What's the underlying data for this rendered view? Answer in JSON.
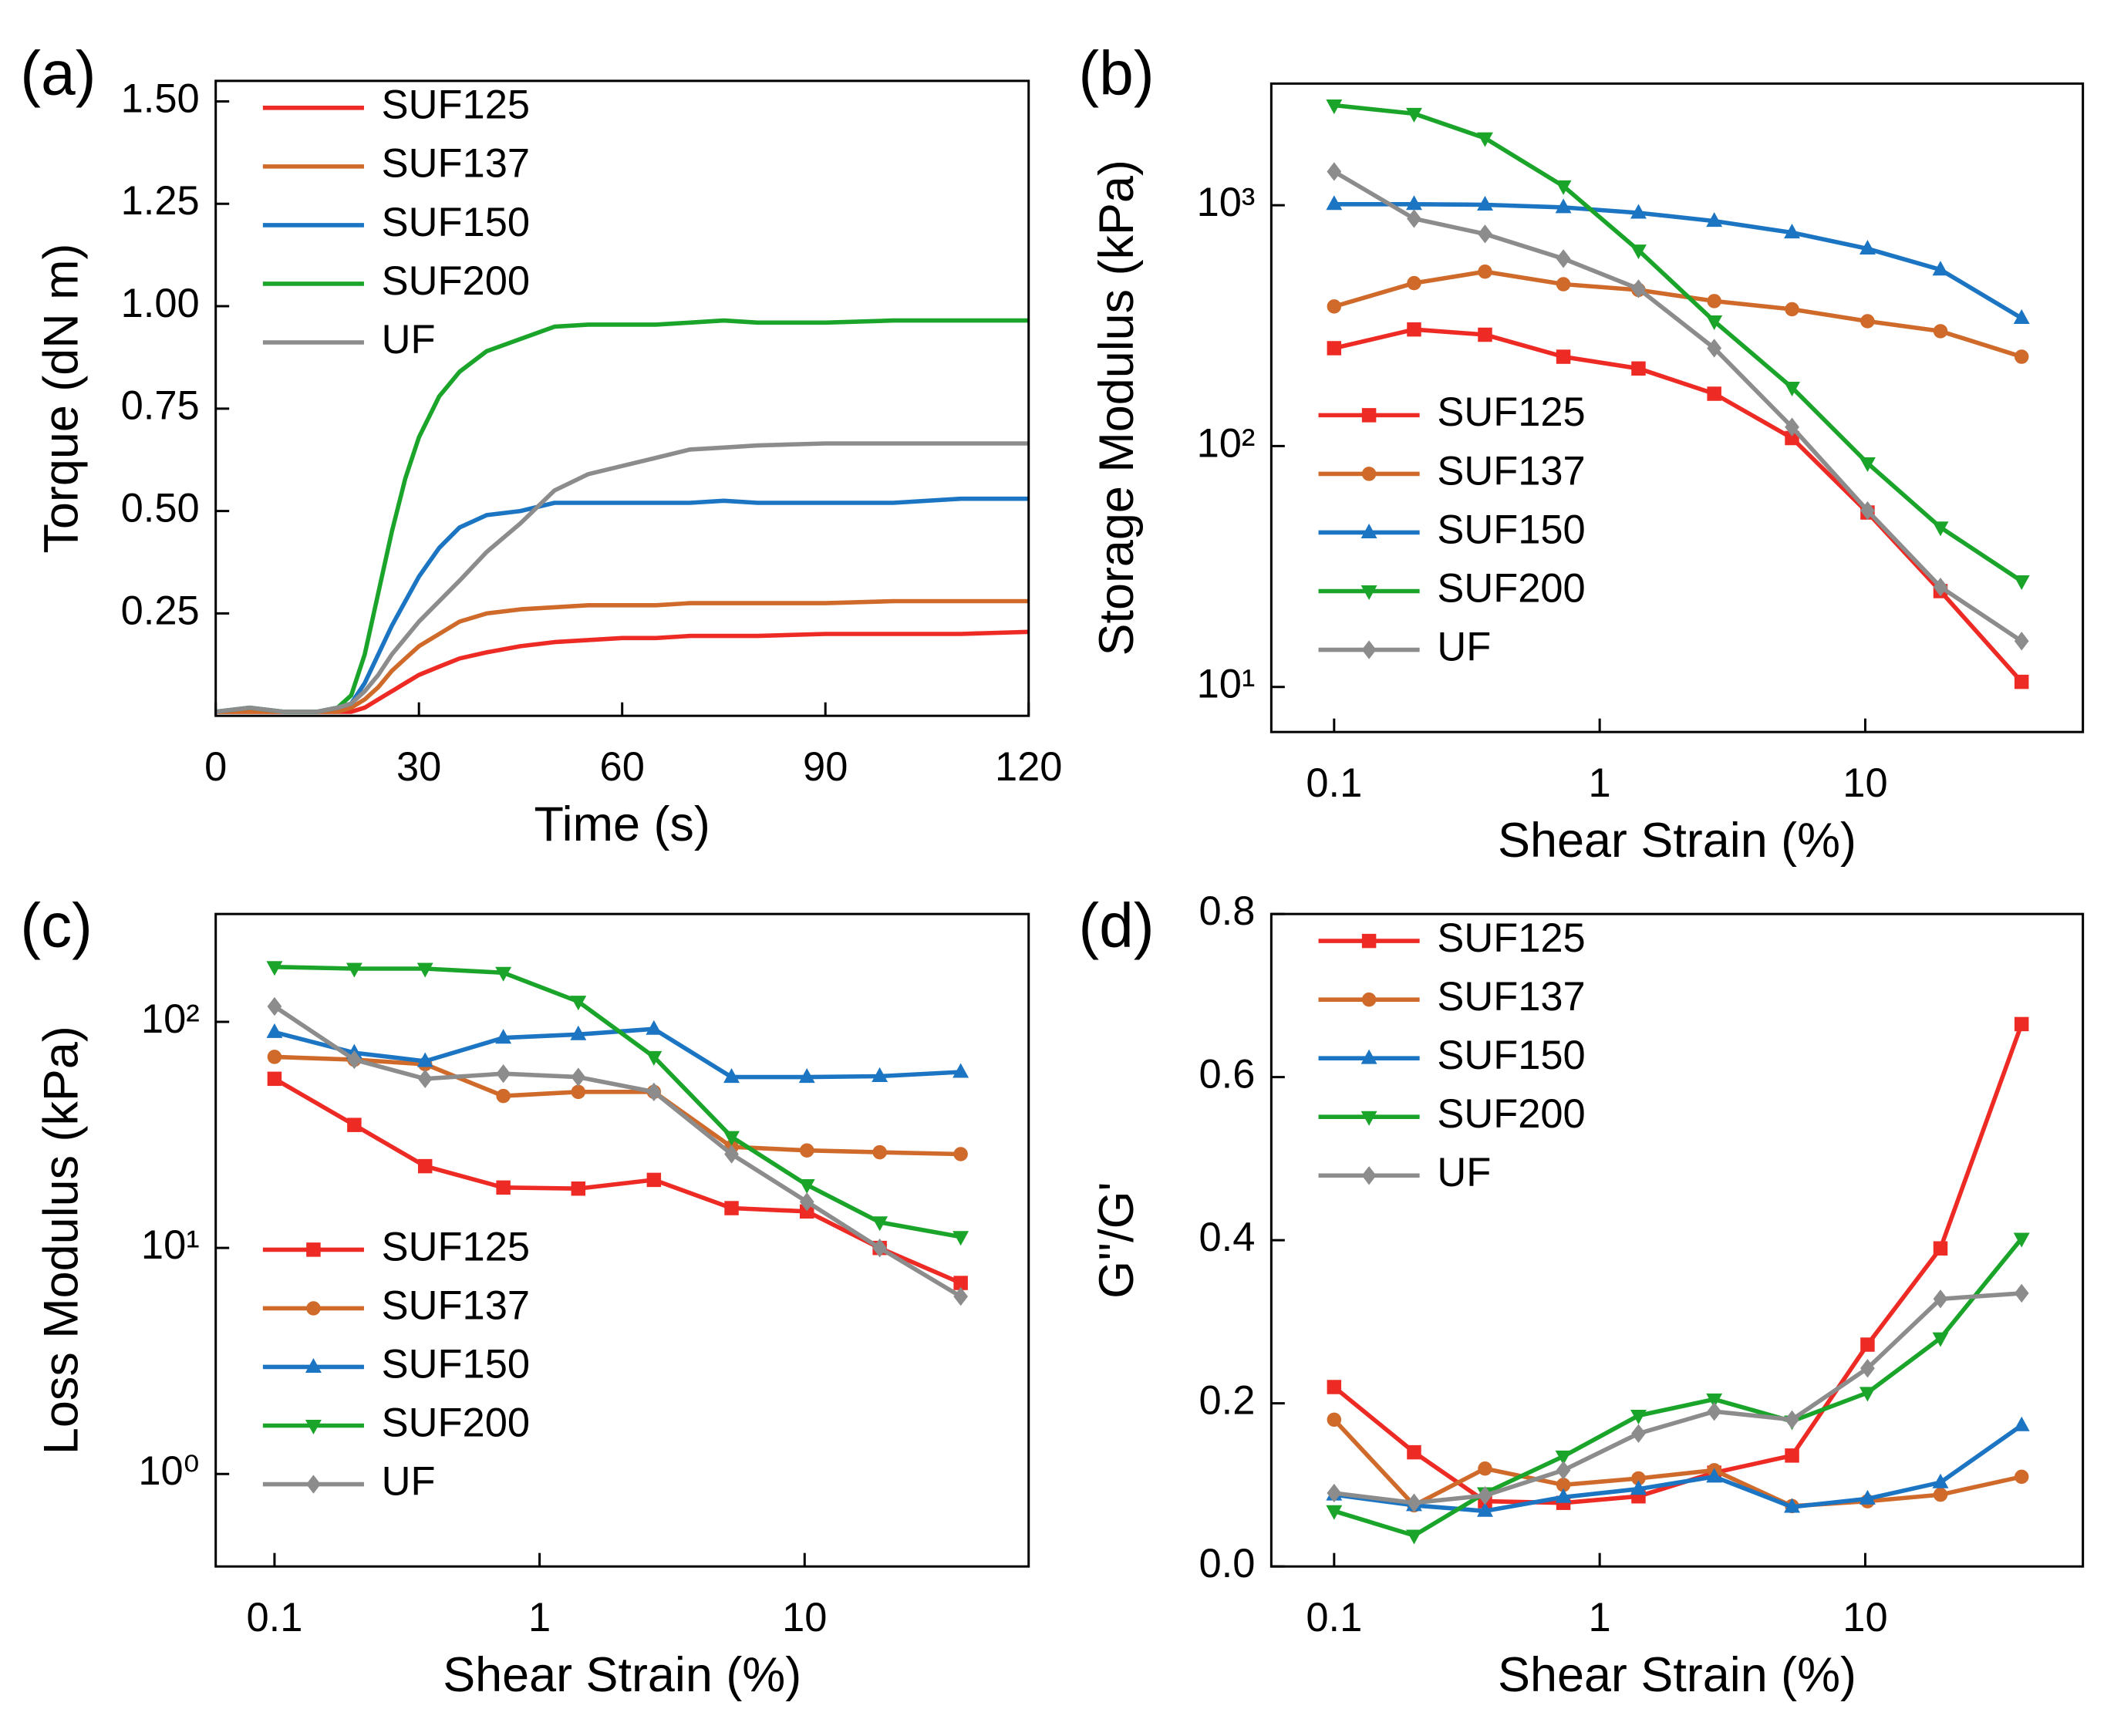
{
  "chart_data": [
    {
      "type": "line",
      "panel_label": "(a)",
      "x_label": "Time (s)",
      "y_label": "Torque (dN m)",
      "xlim": [
        0,
        120
      ],
      "xticks": [
        0,
        30,
        60,
        90,
        120
      ],
      "ylim": [
        0,
        1.55
      ],
      "yticks": [
        0.25,
        {
          "value": 0.5,
          "label": "0.50"
        },
        0.75,
        {
          "value": 1,
          "label": "1.00"
        },
        1.25,
        {
          "value": 1.5,
          "label": "1.50"
        }
      ],
      "legend": "upper left",
      "markers": false,
      "x": [
        0,
        5,
        10,
        15,
        18,
        20,
        22,
        24,
        26,
        28,
        30,
        33,
        36,
        40,
        45,
        50,
        55,
        60,
        65,
        70,
        75,
        80,
        90,
        100,
        110,
        120
      ],
      "series": [
        {
          "name": "SUF125",
          "color": "#ee2a24",
          "values": [
            0.01,
            0.01,
            0.01,
            0.01,
            0.01,
            0.01,
            0.02,
            0.04,
            0.06,
            0.08,
            0.1,
            0.12,
            0.14,
            0.155,
            0.17,
            0.18,
            0.185,
            0.19,
            0.19,
            0.195,
            0.195,
            0.195,
            0.2,
            0.2,
            0.2,
            0.205
          ]
        },
        {
          "name": "SUF137",
          "color": "#cf6a2b",
          "values": [
            0.01,
            0.01,
            0.01,
            0.01,
            0.01,
            0.02,
            0.04,
            0.07,
            0.11,
            0.14,
            0.17,
            0.2,
            0.23,
            0.25,
            0.26,
            0.265,
            0.27,
            0.27,
            0.27,
            0.275,
            0.275,
            0.275,
            0.275,
            0.28,
            0.28,
            0.28
          ]
        },
        {
          "name": "SUF150",
          "color": "#1b75c2",
          "values": [
            0.01,
            0.02,
            0.01,
            0.01,
            0.02,
            0.03,
            0.08,
            0.15,
            0.22,
            0.28,
            0.34,
            0.41,
            0.46,
            0.49,
            0.5,
            0.52,
            0.52,
            0.52,
            0.52,
            0.52,
            0.525,
            0.52,
            0.52,
            0.52,
            0.53,
            0.53
          ]
        },
        {
          "name": "SUF200",
          "color": "#1aa52a",
          "values": [
            0.01,
            0.02,
            0.01,
            0.01,
            0.02,
            0.05,
            0.15,
            0.3,
            0.45,
            0.58,
            0.68,
            0.78,
            0.84,
            0.89,
            0.92,
            0.95,
            0.955,
            0.955,
            0.955,
            0.96,
            0.965,
            0.96,
            0.96,
            0.965,
            0.965,
            0.965
          ]
        },
        {
          "name": "UF",
          "color": "#8c8c8c",
          "values": [
            0.01,
            0.02,
            0.01,
            0.01,
            0.02,
            0.03,
            0.06,
            0.1,
            0.15,
            0.19,
            0.23,
            0.28,
            0.33,
            0.4,
            0.47,
            0.55,
            0.59,
            0.61,
            0.63,
            0.65,
            0.655,
            0.66,
            0.665,
            0.665,
            0.665,
            0.665
          ]
        }
      ]
    },
    {
      "type": "line",
      "panel_label": "(b)",
      "x_label": "Shear Strain (%)",
      "y_label": "Storage Modulus (kPa)",
      "xscale": "log",
      "yscale": "log",
      "xlim": [
        0.058,
        66
      ],
      "xticks": [
        0.1,
        1,
        10
      ],
      "ylim": [
        6.5,
        3200
      ],
      "yticks": [
        {
          "value": 10,
          "label": "10¹"
        },
        {
          "value": 100,
          "label": "10²"
        },
        {
          "value": 1000,
          "label": "10³"
        }
      ],
      "legend": "lower left",
      "markers": true,
      "x": [
        0.1,
        0.2,
        0.37,
        0.73,
        1.4,
        2.7,
        5.3,
        10.2,
        19.2,
        38.8
      ],
      "series": [
        {
          "name": "SUF125",
          "color": "#ee2a24",
          "marker": "square",
          "values": [
            255,
            305,
            290,
            235,
            210,
            165,
            108,
            53,
            25,
            10.5
          ]
        },
        {
          "name": "SUF137",
          "color": "#cf6a2b",
          "marker": "circle",
          "values": [
            380,
            475,
            530,
            470,
            445,
            400,
            370,
            330,
            300,
            235
          ]
        },
        {
          "name": "SUF150",
          "color": "#1b75c2",
          "marker": "triangle-up",
          "values": [
            1010,
            1010,
            1005,
            980,
            930,
            860,
            770,
            660,
            540,
            340
          ]
        },
        {
          "name": "SUF200",
          "color": "#1aa52a",
          "marker": "triangle-down",
          "values": [
            2600,
            2400,
            1900,
            1200,
            650,
            330,
            175,
            85,
            46,
            27.5
          ]
        },
        {
          "name": "UF",
          "color": "#8c8c8c",
          "marker": "diamond",
          "values": [
            1380,
            880,
            760,
            600,
            450,
            255,
            120,
            54,
            26,
            15.5
          ]
        }
      ]
    },
    {
      "type": "line",
      "panel_label": "(c)",
      "x_label": "Shear Strain (%)",
      "y_label": "Loss Modulus (kPa)",
      "xscale": "log",
      "yscale": "log",
      "xlim": [
        0.06,
        70
      ],
      "xticks": [
        0.1,
        1,
        10
      ],
      "ylim": [
        0.39,
        300
      ],
      "yticks": [
        {
          "value": 1,
          "label": "10⁰"
        },
        {
          "value": 10,
          "label": "10¹"
        },
        {
          "value": 100,
          "label": "10²"
        }
      ],
      "legend": "lower left",
      "markers": true,
      "x": [
        0.1,
        0.2,
        0.37,
        0.73,
        1.4,
        2.7,
        5.3,
        10.2,
        19.2,
        38.8
      ],
      "series": [
        {
          "name": "SUF125",
          "color": "#ee2a24",
          "marker": "square",
          "values": [
            56,
            35,
            23,
            18.5,
            18.3,
            20,
            15,
            14.5,
            10,
            7
          ]
        },
        {
          "name": "SUF137",
          "color": "#cf6a2b",
          "marker": "circle",
          "values": [
            70,
            68,
            65,
            47,
            49,
            49,
            28,
            27,
            26.5,
            26
          ]
        },
        {
          "name": "SUF150",
          "color": "#1b75c2",
          "marker": "triangle-up",
          "values": [
            90,
            73,
            67,
            85,
            88,
            93,
            57,
            57,
            57.5,
            60
          ]
        },
        {
          "name": "SUF200",
          "color": "#1aa52a",
          "marker": "triangle-down",
          "values": [
            175,
            172,
            172,
            165,
            123,
            70,
            31,
            19,
            13,
            11.2
          ]
        },
        {
          "name": "UF",
          "color": "#8c8c8c",
          "marker": "diamond",
          "values": [
            117,
            68,
            56,
            59,
            57,
            49,
            26,
            16,
            10,
            6.1
          ]
        }
      ]
    },
    {
      "type": "line",
      "panel_label": "(d)",
      "x_label": "Shear Strain (%)",
      "y_label": "G''/G'",
      "xscale": "log",
      "xlim": [
        0.058,
        66
      ],
      "xticks": [
        0.1,
        1,
        10
      ],
      "ylim": [
        0,
        0.8
      ],
      "yticks": [
        {
          "value": 0,
          "label": "0.0"
        },
        0.2,
        0.4,
        0.6,
        0.8
      ],
      "legend": "upper left",
      "markers": true,
      "x": [
        0.1,
        0.2,
        0.37,
        0.73,
        1.4,
        2.7,
        5.3,
        10.2,
        19.2,
        38.8
      ],
      "series": [
        {
          "name": "SUF125",
          "color": "#ee2a24",
          "marker": "square",
          "values": [
            0.22,
            0.14,
            0.08,
            0.078,
            0.086,
            0.115,
            0.136,
            0.272,
            0.39,
            0.665
          ]
        },
        {
          "name": "SUF137",
          "color": "#cf6a2b",
          "marker": "circle",
          "values": [
            0.18,
            0.075,
            0.12,
            0.1,
            0.108,
            0.118,
            0.074,
            0.08,
            0.088,
            0.11
          ]
        },
        {
          "name": "SUF150",
          "color": "#1b75c2",
          "marker": "triangle-up",
          "values": [
            0.088,
            0.075,
            0.068,
            0.085,
            0.095,
            0.11,
            0.073,
            0.083,
            0.103,
            0.173
          ]
        },
        {
          "name": "SUF200",
          "color": "#1aa52a",
          "marker": "triangle-down",
          "values": [
            0.068,
            0.038,
            0.09,
            0.135,
            0.185,
            0.205,
            0.178,
            0.213,
            0.28,
            0.402
          ]
        },
        {
          "name": "UF",
          "color": "#8c8c8c",
          "marker": "diamond",
          "values": [
            0.09,
            0.078,
            0.087,
            0.118,
            0.163,
            0.19,
            0.18,
            0.243,
            0.328,
            0.335
          ]
        }
      ]
    }
  ]
}
